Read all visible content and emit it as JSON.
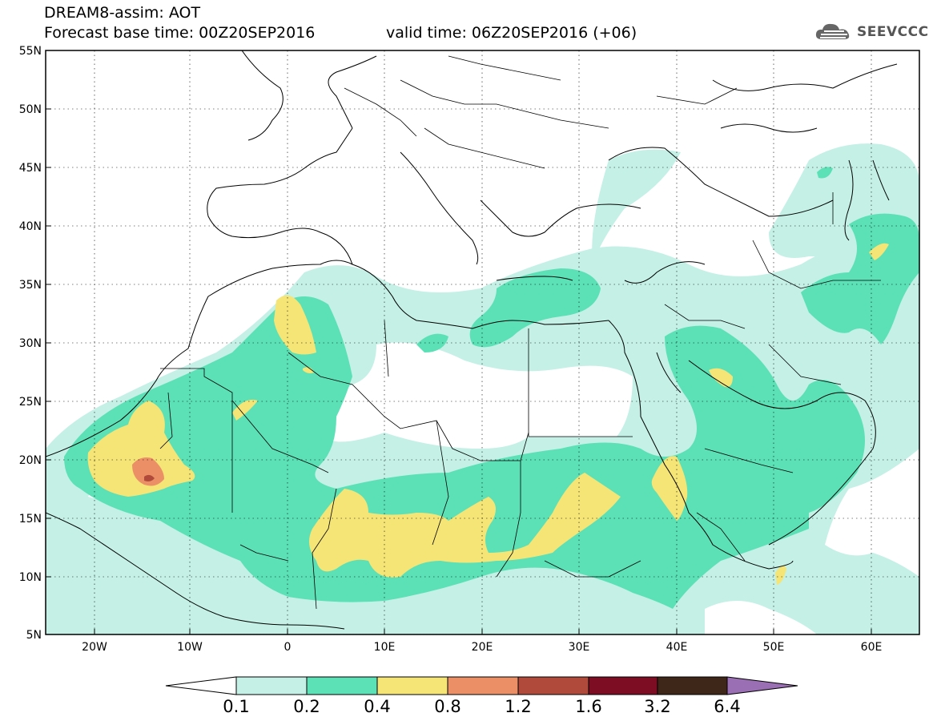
{
  "header": {
    "model_title": "DREAM8-assim: AOT",
    "base_time": "Forecast base time: 00Z20SEP2016",
    "valid_time": "valid time: 06Z20SEP2016 (+06)",
    "logo_text": "SEEVCCC"
  },
  "map": {
    "lat_labels": [
      "55N",
      "50N",
      "45N",
      "40N",
      "35N",
      "30N",
      "25N",
      "20N",
      "15N",
      "10N",
      "5N"
    ],
    "lon_labels": [
      "20W",
      "10W",
      "0",
      "10E",
      "20E",
      "30E",
      "40E",
      "50E",
      "60E"
    ],
    "lat_range": [
      5,
      55
    ],
    "lon_range": [
      -25,
      65
    ],
    "gridlines": "dotted"
  },
  "colorbar": {
    "labels": [
      "0.1",
      "0.2",
      "0.4",
      "0.8",
      "1.2",
      "1.6",
      "3.2",
      "6.4"
    ],
    "colors": [
      "#ffffff",
      "#c4f0e6",
      "#5ce0b6",
      "#f5e577",
      "#eb9066",
      "#b04a3a",
      "#7c0d23",
      "#3e2618",
      "#9b6fb3"
    ]
  },
  "legend_colors": {
    "aot_0_1": "#c4f0e6",
    "aot_0_2": "#5ce0b6",
    "aot_0_4": "#f5e577",
    "aot_0_8": "#eb9066",
    "aot_1_2": "#b04a3a"
  }
}
